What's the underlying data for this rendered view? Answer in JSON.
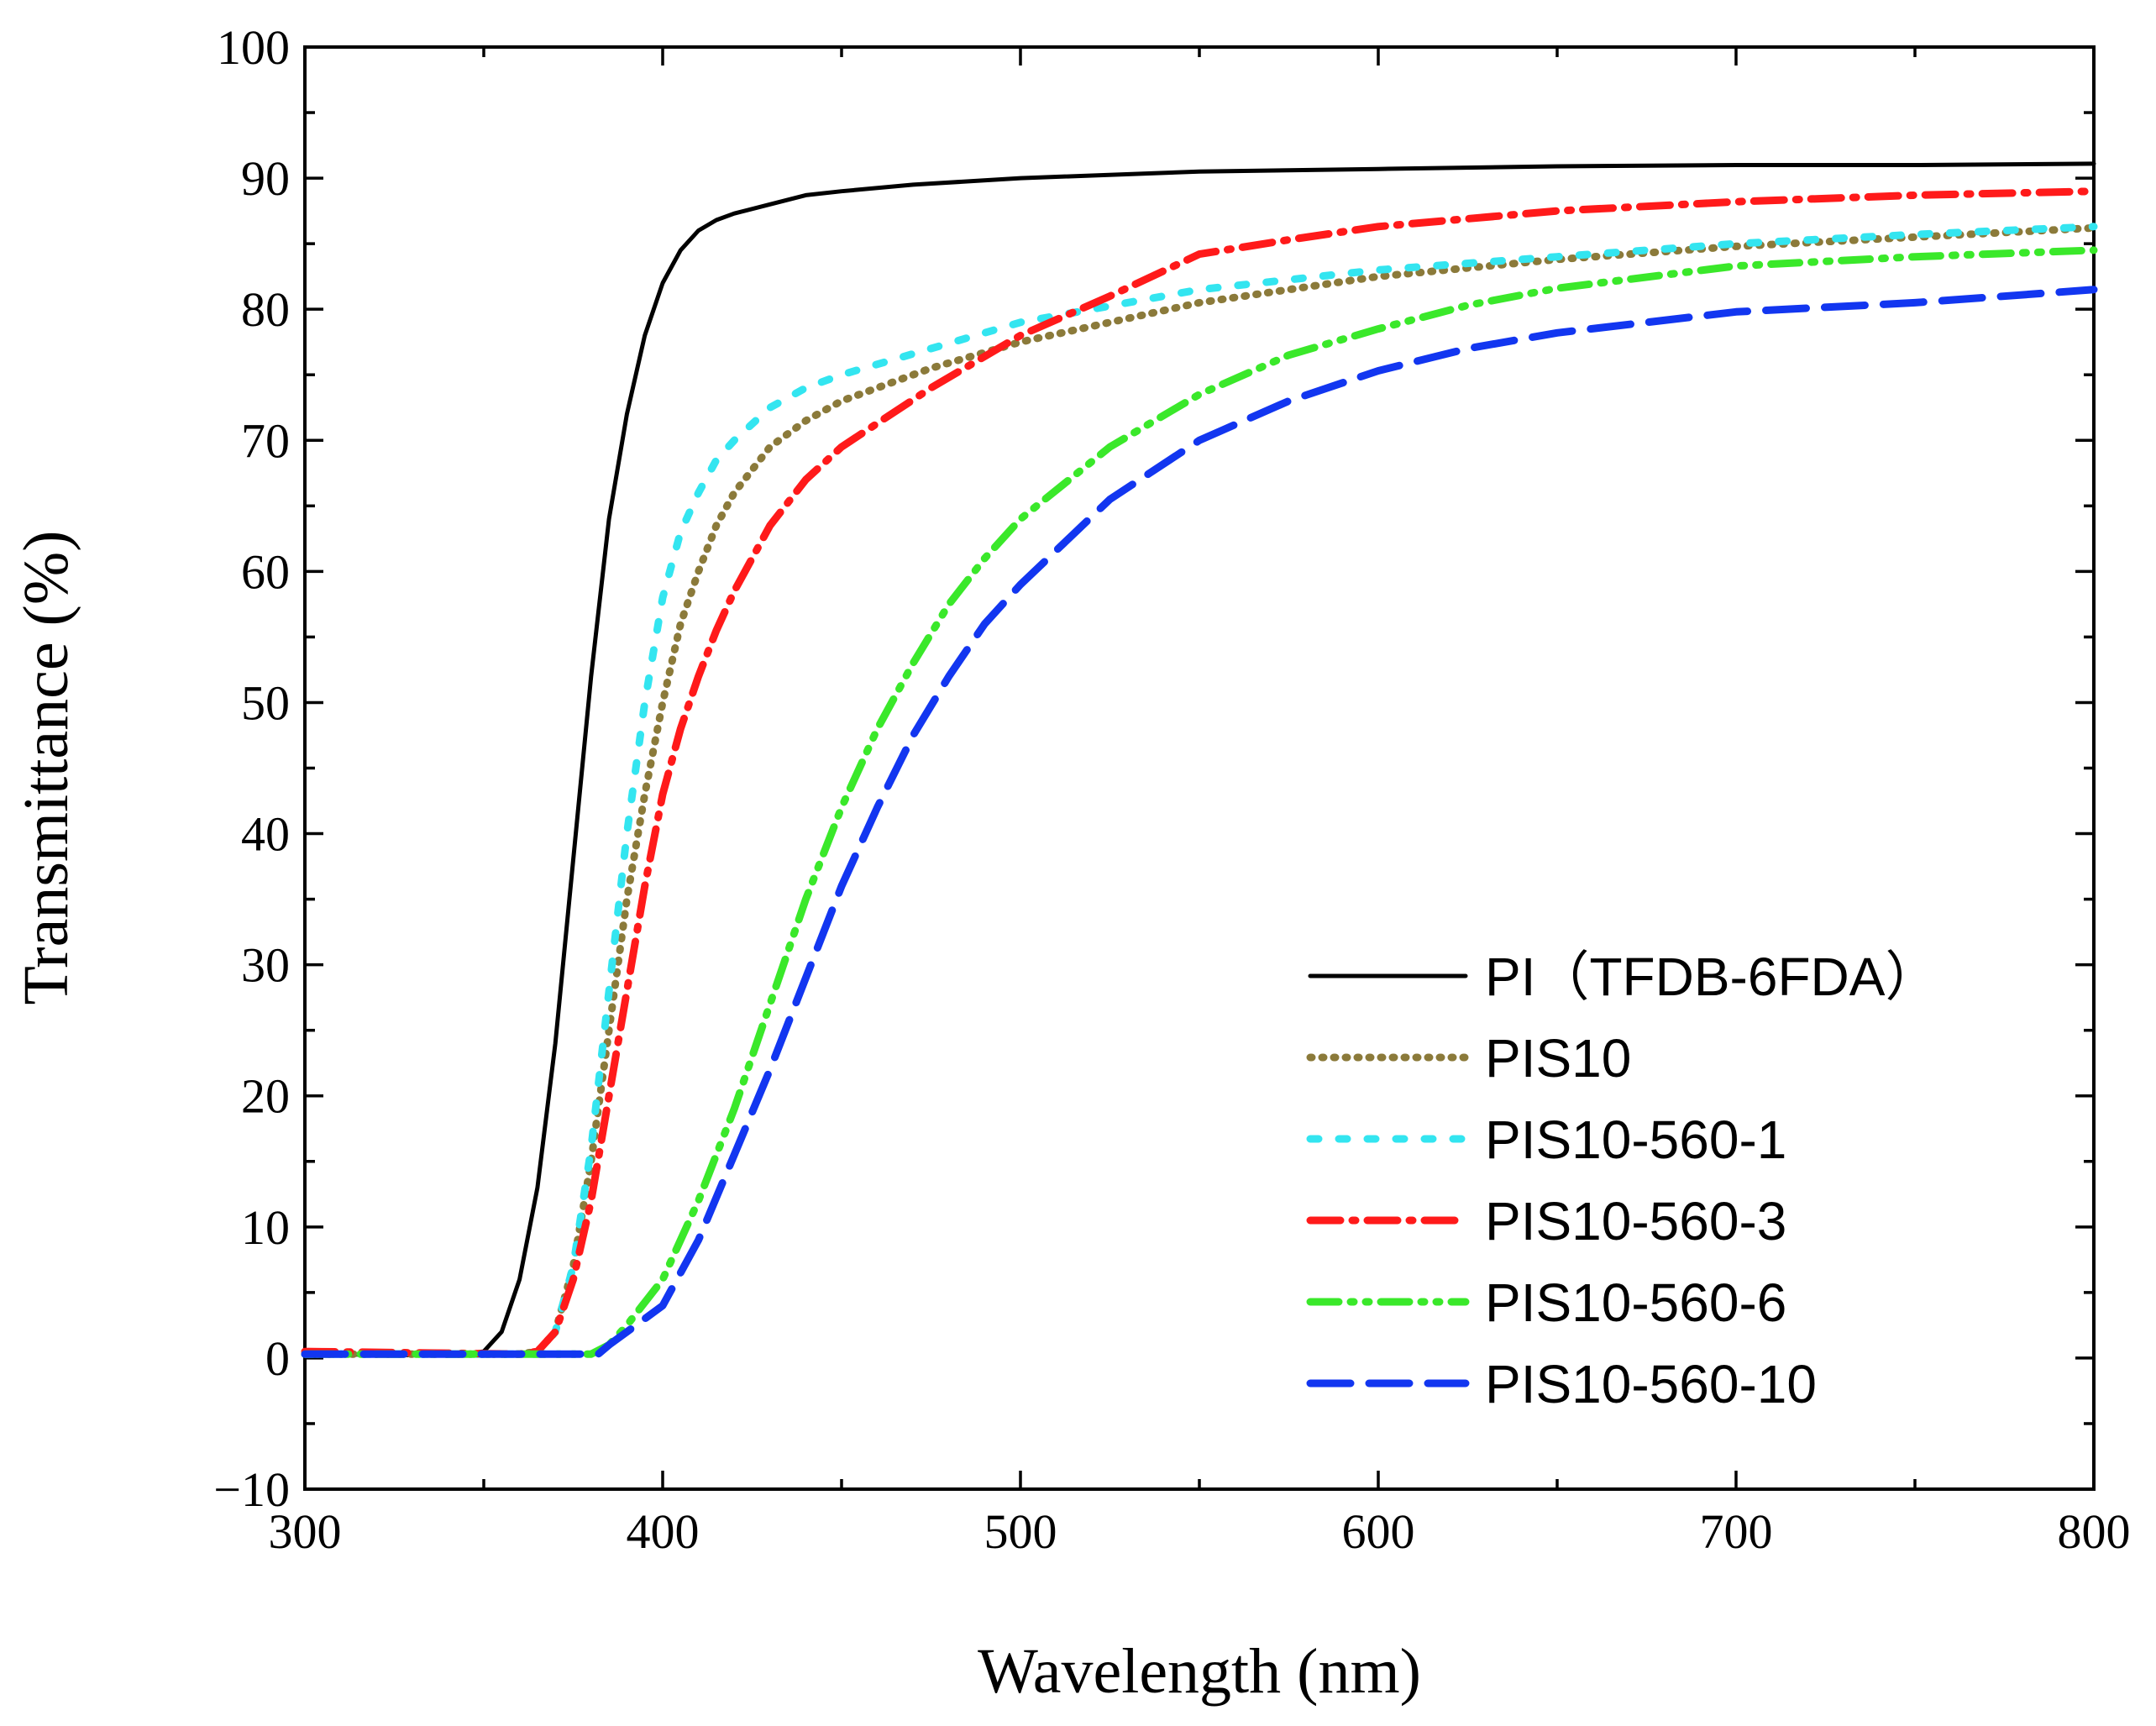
{
  "chart_data": {
    "type": "line",
    "title": "",
    "xlabel": "Wavelength (nm)",
    "ylabel": "Transmittance (%)",
    "xlim": [
      300,
      800
    ],
    "ylim": [
      -10,
      100
    ],
    "x_ticks": [
      "300",
      "400",
      "500",
      "600",
      "700",
      "800"
    ],
    "y_ticks": [
      "−10",
      "0",
      "10",
      "20",
      "30",
      "40",
      "50",
      "60",
      "70",
      "80",
      "90",
      "100"
    ],
    "grid": false,
    "legend_position": "bottom-right",
    "series": [
      {
        "name": "PI（TFDB-6FDA）",
        "color": "#000000",
        "style": "solid",
        "points": [
          [
            300,
            0.3
          ],
          [
            340,
            0.2
          ],
          [
            350,
            0.5
          ],
          [
            355,
            2
          ],
          [
            360,
            6
          ],
          [
            365,
            13
          ],
          [
            370,
            24
          ],
          [
            375,
            38
          ],
          [
            380,
            52
          ],
          [
            385,
            64
          ],
          [
            390,
            72
          ],
          [
            395,
            78
          ],
          [
            400,
            82
          ],
          [
            405,
            84.5
          ],
          [
            410,
            86
          ],
          [
            415,
            86.8
          ],
          [
            420,
            87.3
          ],
          [
            430,
            88
          ],
          [
            440,
            88.7
          ],
          [
            450,
            89
          ],
          [
            470,
            89.5
          ],
          [
            500,
            90
          ],
          [
            550,
            90.5
          ],
          [
            600,
            90.7
          ],
          [
            650,
            90.9
          ],
          [
            700,
            91
          ],
          [
            750,
            91
          ],
          [
            800,
            91.1
          ]
        ]
      },
      {
        "name": "PIS10",
        "color": "#8b7a3a",
        "style": "dotted",
        "points": [
          [
            300,
            0.3
          ],
          [
            360,
            0.3
          ],
          [
            365,
            0.5
          ],
          [
            370,
            2
          ],
          [
            375,
            7
          ],
          [
            380,
            15
          ],
          [
            385,
            25
          ],
          [
            390,
            35
          ],
          [
            395,
            43
          ],
          [
            400,
            50
          ],
          [
            405,
            56
          ],
          [
            410,
            60
          ],
          [
            415,
            63.5
          ],
          [
            420,
            66
          ],
          [
            430,
            69.5
          ],
          [
            440,
            71.5
          ],
          [
            450,
            73
          ],
          [
            475,
            75.5
          ],
          [
            500,
            77.5
          ],
          [
            550,
            80.5
          ],
          [
            600,
            82.5
          ],
          [
            650,
            83.8
          ],
          [
            700,
            84.8
          ],
          [
            750,
            85.5
          ],
          [
            800,
            86.2
          ]
        ]
      },
      {
        "name": "PIS10-560-1",
        "color": "#33e5f0",
        "style": "dashed-short",
        "points": [
          [
            300,
            0.3
          ],
          [
            365,
            0.3
          ],
          [
            370,
            2
          ],
          [
            375,
            7
          ],
          [
            380,
            16
          ],
          [
            385,
            28
          ],
          [
            390,
            40
          ],
          [
            395,
            50
          ],
          [
            400,
            58
          ],
          [
            405,
            63
          ],
          [
            410,
            66
          ],
          [
            415,
            68.5
          ],
          [
            420,
            70
          ],
          [
            430,
            72.5
          ],
          [
            440,
            74
          ],
          [
            450,
            75
          ],
          [
            475,
            77
          ],
          [
            500,
            79
          ],
          [
            550,
            81.5
          ],
          [
            600,
            83
          ],
          [
            650,
            84
          ],
          [
            700,
            85
          ],
          [
            750,
            85.7
          ],
          [
            800,
            86.3
          ]
        ]
      },
      {
        "name": "PIS10-560-3",
        "color": "#ff1a1a",
        "style": "dashdot",
        "points": [
          [
            300,
            0.5
          ],
          [
            360,
            0.3
          ],
          [
            365,
            0.5
          ],
          [
            370,
            2
          ],
          [
            375,
            6
          ],
          [
            380,
            12
          ],
          [
            385,
            20
          ],
          [
            390,
            28
          ],
          [
            395,
            36
          ],
          [
            400,
            43
          ],
          [
            405,
            48
          ],
          [
            410,
            52
          ],
          [
            415,
            55.5
          ],
          [
            420,
            58.5
          ],
          [
            430,
            63.5
          ],
          [
            440,
            67
          ],
          [
            450,
            69.5
          ],
          [
            475,
            74
          ],
          [
            500,
            78
          ],
          [
            525,
            81
          ],
          [
            550,
            84.2
          ],
          [
            575,
            85.3
          ],
          [
            600,
            86.3
          ],
          [
            650,
            87.5
          ],
          [
            700,
            88.2
          ],
          [
            750,
            88.7
          ],
          [
            800,
            89
          ]
        ]
      },
      {
        "name": "PIS10-560-6",
        "color": "#3ae82a",
        "style": "dashdotdot",
        "points": [
          [
            300,
            0.3
          ],
          [
            380,
            0.3
          ],
          [
            385,
            1
          ],
          [
            390,
            2.5
          ],
          [
            400,
            6
          ],
          [
            410,
            12
          ],
          [
            420,
            19
          ],
          [
            430,
            27
          ],
          [
            440,
            35
          ],
          [
            450,
            42
          ],
          [
            460,
            48
          ],
          [
            470,
            53
          ],
          [
            480,
            57.5
          ],
          [
            490,
            61
          ],
          [
            500,
            64
          ],
          [
            525,
            69.5
          ],
          [
            550,
            73.5
          ],
          [
            575,
            76.5
          ],
          [
            600,
            78.5
          ],
          [
            625,
            80.3
          ],
          [
            650,
            81.6
          ],
          [
            700,
            83.3
          ],
          [
            750,
            84
          ],
          [
            800,
            84.5
          ]
        ]
      },
      {
        "name": "PIS10-560-10",
        "color": "#1236f0",
        "style": "dashed-long",
        "points": [
          [
            300,
            0.3
          ],
          [
            382,
            0.3
          ],
          [
            385,
            1
          ],
          [
            390,
            2
          ],
          [
            400,
            4
          ],
          [
            410,
            9
          ],
          [
            420,
            15.5
          ],
          [
            430,
            22
          ],
          [
            440,
            29
          ],
          [
            450,
            36
          ],
          [
            460,
            42
          ],
          [
            470,
            47.5
          ],
          [
            480,
            52
          ],
          [
            490,
            56
          ],
          [
            500,
            59
          ],
          [
            525,
            65.5
          ],
          [
            550,
            70
          ],
          [
            575,
            73
          ],
          [
            600,
            75.3
          ],
          [
            625,
            77
          ],
          [
            650,
            78.2
          ],
          [
            700,
            79.8
          ],
          [
            750,
            80.5
          ],
          [
            800,
            81.5
          ]
        ]
      }
    ]
  }
}
